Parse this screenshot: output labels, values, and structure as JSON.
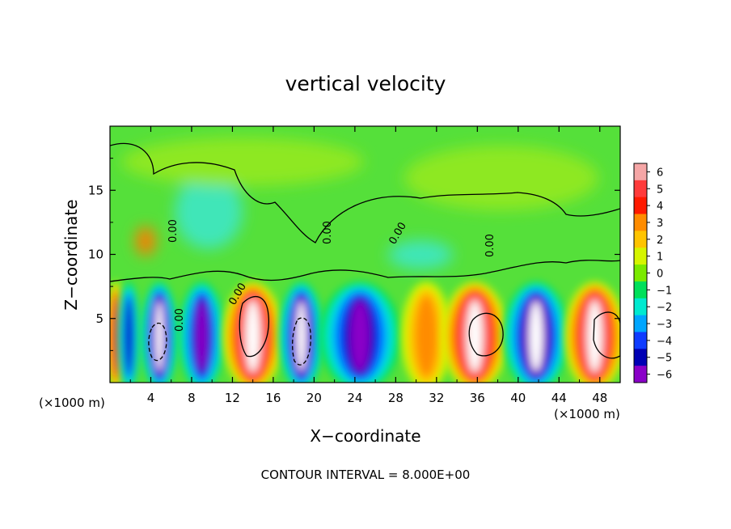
{
  "chart_data": {
    "type": "heatmap",
    "title": "vertical velocity",
    "xlabel": "X−coordinate",
    "ylabel": "Z−coordinate",
    "x_unit_label": "(×1000 m)",
    "z_unit_label": "(×1000 m)",
    "xlim": [
      0,
      50
    ],
    "ylim": [
      0,
      20
    ],
    "x_ticks": [
      4,
      8,
      12,
      16,
      20,
      24,
      28,
      32,
      36,
      40,
      44,
      48
    ],
    "y_ticks": [
      5,
      10,
      15
    ],
    "colorbar": {
      "ticks": [
        6,
        5,
        4,
        3,
        2,
        1,
        0,
        -1,
        -2,
        -3,
        -4,
        -5,
        -6
      ],
      "tick_labels": [
        "6",
        "5",
        "4",
        "3",
        "2",
        "1",
        "0",
        "−1",
        "−2",
        "−3",
        "−4",
        "−5",
        "−6"
      ],
      "colors": [
        "#f5a6a6",
        "#ff3b3b",
        "#ff1a00",
        "#ff8c00",
        "#ffc400",
        "#d6f500",
        "#7bea00",
        "#00e05a",
        "#00ead0",
        "#00a6ff",
        "#0f3cff",
        "#0000b4",
        "#8a00c8"
      ],
      "over_color": "#ffffff",
      "under_color": "#ffffff"
    },
    "contour_label": "0.00",
    "contour_interval_text": "CONTOUR INTERVAL = 8.000E+00",
    "cells": [
      {
        "x0": 0,
        "x1": 1.2,
        "value": 4.8
      },
      {
        "x0": 1.2,
        "x1": 2.5,
        "value": -4.5
      },
      {
        "x0": 3.5,
        "x1": 6.2,
        "value": -7.5
      },
      {
        "x0": 7.2,
        "x1": 10.8,
        "value": -5.5
      },
      {
        "x0": 11.5,
        "x1": 16.5,
        "value": 7.5
      },
      {
        "x0": 17.0,
        "x1": 20.5,
        "value": -7.5
      },
      {
        "x0": 21.0,
        "x1": 28.0,
        "value": -5.2
      },
      {
        "x0": 29.0,
        "x1": 33.0,
        "value": 2.5
      },
      {
        "x0": 33.0,
        "x1": 38.5,
        "value": 7.5
      },
      {
        "x0": 39.0,
        "x1": 44.5,
        "value": -6.2
      },
      {
        "x0": 45.0,
        "x1": 50.0,
        "value": 7.0
      }
    ]
  }
}
